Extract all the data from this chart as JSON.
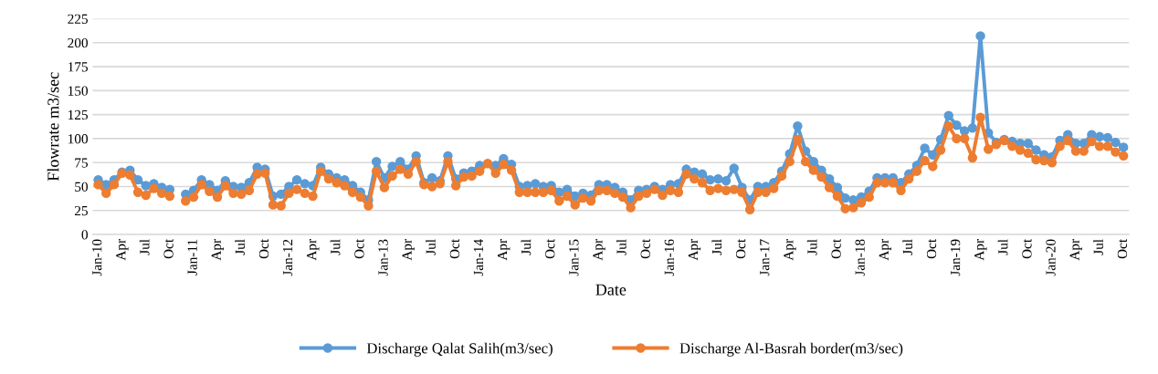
{
  "chart_data": {
    "type": "line",
    "xlabel": "Date",
    "ylabel": "Flowrate m3/sec",
    "categories": [
      "Jan-10",
      null,
      null,
      "Apr",
      null,
      null,
      "Jul",
      null,
      null,
      "Oct",
      null,
      null,
      "Jan-11",
      null,
      null,
      "Apr",
      null,
      null,
      "Jul",
      null,
      null,
      "Oct",
      null,
      null,
      "Jan-12",
      null,
      null,
      "Apr",
      null,
      null,
      "Jul",
      null,
      null,
      "Oct",
      null,
      null,
      "Jan-13",
      null,
      null,
      "Apr",
      null,
      null,
      "Jul",
      null,
      null,
      "Oct",
      null,
      null,
      "Jan-14",
      null,
      null,
      "Apr",
      null,
      null,
      "Jul",
      null,
      null,
      "Oct",
      null,
      null,
      "Jan-15",
      null,
      null,
      "Apr",
      null,
      null,
      "Jul",
      null,
      null,
      "Oct",
      null,
      null,
      "Jan-16",
      null,
      null,
      "Apr",
      null,
      null,
      "Jul",
      null,
      null,
      "Oct",
      null,
      null,
      "Jan-17",
      null,
      null,
      "Apr",
      null,
      null,
      "Jul",
      null,
      null,
      "Oct",
      null,
      null,
      "Jan-18",
      null,
      null,
      "Apr",
      null,
      null,
      "Jul",
      null,
      null,
      "Oct",
      null,
      null,
      "Jan-19",
      null,
      null,
      "Apr",
      null,
      null,
      "Jul",
      null,
      null,
      "Oct",
      null,
      null,
      "Jan-20",
      null,
      null,
      "Apr",
      null,
      null,
      "Jul",
      null,
      null,
      "Oct"
    ],
    "series": [
      {
        "name": "Discharge Qalat Salih(m3/sec)",
        "color": "#5b9bd5",
        "values": [
          57,
          52,
          57,
          65,
          67,
          57,
          51,
          53,
          49,
          47,
          null,
          42,
          46,
          57,
          52,
          46,
          56,
          50,
          49,
          54,
          70,
          68,
          40,
          42,
          50,
          57,
          53,
          51,
          70,
          63,
          59,
          57,
          51,
          44,
          36,
          76,
          59,
          71,
          76,
          68,
          82,
          54,
          59,
          56,
          82,
          58,
          64,
          66,
          72,
          null,
          72,
          79,
          73,
          50,
          51,
          53,
          50,
          51,
          44,
          47,
          40,
          43,
          41,
          52,
          52,
          49,
          44,
          36,
          46,
          47,
          50,
          47,
          52,
          53,
          68,
          65,
          63,
          57,
          58,
          56,
          69,
          49,
          36,
          50,
          50,
          54,
          66,
          84,
          113,
          87,
          76,
          67,
          58,
          49,
          38,
          36,
          39,
          45,
          59,
          59,
          59,
          54,
          63,
          72,
          90,
          83,
          99,
          124,
          114,
          108,
          111,
          207,
          106,
          96,
          99,
          97,
          95,
          95,
          88,
          83,
          81,
          98,
          104,
          95,
          95,
          104,
          102,
          101,
          96,
          91
        ]
      },
      {
        "name": "Discharge Al-Basrah border(m3/sec)",
        "color": "#ed7d31",
        "values": [
          52,
          43,
          52,
          64,
          62,
          44,
          41,
          48,
          43,
          40,
          null,
          35,
          39,
          52,
          45,
          39,
          51,
          43,
          42,
          46,
          63,
          64,
          31,
          30,
          43,
          47,
          43,
          40,
          66,
          58,
          54,
          51,
          44,
          39,
          30,
          66,
          49,
          61,
          68,
          63,
          76,
          52,
          50,
          53,
          76,
          51,
          60,
          61,
          66,
          74,
          64,
          73,
          67,
          44,
          44,
          44,
          44,
          46,
          35,
          40,
          31,
          38,
          35,
          46,
          46,
          43,
          39,
          28,
          40,
          43,
          47,
          41,
          46,
          44,
          63,
          58,
          54,
          46,
          48,
          46,
          47,
          44,
          26,
          44,
          44,
          48,
          61,
          76,
          99,
          76,
          67,
          60,
          49,
          40,
          27,
          28,
          33,
          39,
          54,
          54,
          54,
          46,
          58,
          66,
          77,
          71,
          88,
          113,
          100,
          100,
          80,
          122,
          89,
          94,
          98,
          92,
          88,
          85,
          78,
          77,
          75,
          92,
          98,
          87,
          87,
          97,
          92,
          92,
          86,
          82
        ]
      }
    ],
    "ylim": [
      0,
      225
    ],
    "yticks": [
      0,
      25,
      50,
      75,
      100,
      125,
      150,
      175,
      200,
      225
    ],
    "grid": "y",
    "legend": "bottom",
    "marker": "circle",
    "line_style": "solid"
  }
}
